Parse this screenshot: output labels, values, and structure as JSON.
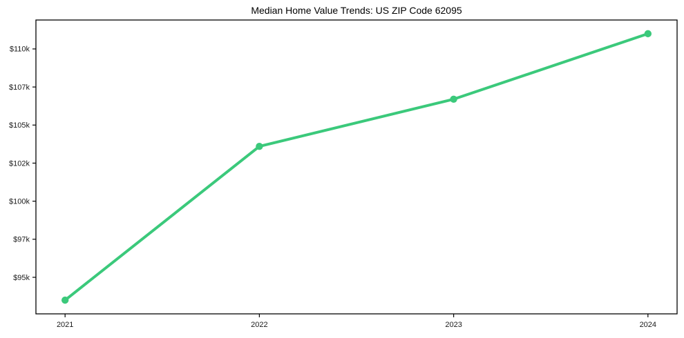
{
  "chart_data": {
    "type": "line",
    "title": "Median Home Value Trends: US ZIP Code 62095",
    "x": [
      2021,
      2022,
      2023,
      2024
    ],
    "series": [
      {
        "name": "Median Home Value",
        "values": [
          93500,
          103600,
          106700,
          111000
        ]
      }
    ],
    "xlabel": "",
    "ylabel": "",
    "xlim": [
      2020.85,
      2024.15
    ],
    "ylim": [
      92600,
      111900
    ],
    "xticks": [
      {
        "value": 2021,
        "label": "2021"
      },
      {
        "value": 2022,
        "label": "2022"
      },
      {
        "value": 2023,
        "label": "2023"
      },
      {
        "value": 2024,
        "label": "2024"
      }
    ],
    "yticks": [
      {
        "value": 95000,
        "label": "$95k"
      },
      {
        "value": 97500,
        "label": "$97k"
      },
      {
        "value": 100000,
        "label": "$100k"
      },
      {
        "value": 102500,
        "label": "$102k"
      },
      {
        "value": 105000,
        "label": "$105k"
      },
      {
        "value": 107500,
        "label": "$107k"
      },
      {
        "value": 110000,
        "label": "$110k"
      }
    ],
    "grid": false,
    "legend": "none",
    "marker": "circle",
    "colors": {
      "line": "#3bc97b",
      "frame": "#000000",
      "text": "#1a1a1a",
      "plot_background": "#ffffff",
      "figure_background": "#ffffff"
    }
  }
}
